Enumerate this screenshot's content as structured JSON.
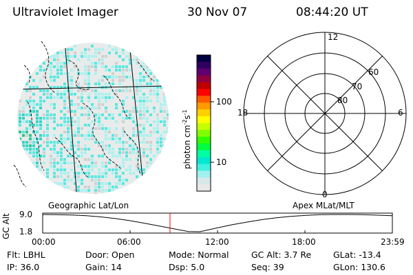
{
  "header": {
    "title": "Ultraviolet Imager",
    "date": "30 Nov 07",
    "time": "08:44:20 UT"
  },
  "colorbar": {
    "label": "photon cm",
    "label_exp1": "-2",
    "label_mid": "s",
    "label_exp2": "-1",
    "ticks": [
      "100",
      "10"
    ],
    "colors": [
      "#000040",
      "#300060",
      "#600070",
      "#900040",
      "#c00000",
      "#ff0000",
      "#ff5a00",
      "#ff9a00",
      "#ffd000",
      "#ffff00",
      "#c8ff00",
      "#80ff00",
      "#30ff00",
      "#00ff40",
      "#00ffa0",
      "#00e8d0",
      "#40f0e0",
      "#a0f0f0",
      "#d8e8e8",
      "#e8e8e8"
    ]
  },
  "earth_map": {
    "base_color": "#e8ebea",
    "speckle_colors": [
      "#58e8e0",
      "#a8f2f0",
      "#d0d0d0",
      "#33d6c8",
      "#28c890"
    ]
  },
  "polar_plot": {
    "lat_labels": [
      "80",
      "70",
      "60"
    ],
    "mlt_labels": {
      "top": "12",
      "bottom": "0",
      "left": "18",
      "right": "6"
    }
  },
  "timeline": {
    "left_label": "Geographic Lat/Lon",
    "right_label": "Apex MLat/MLT",
    "ylabel": "GC Alt",
    "y_ticks": [
      "9.0",
      "1.8"
    ],
    "x_ticks": [
      "00:00",
      "06:00",
      "12:00",
      "18:00",
      "23:59"
    ],
    "marker_color": "#ff0000",
    "marker_time": "08:44:20",
    "series": [
      {
        "t": 0,
        "alt": 9.0
      },
      {
        "t": 1,
        "alt": 8.9
      },
      {
        "t": 2,
        "alt": 8.8
      },
      {
        "t": 3,
        "alt": 8.5
      },
      {
        "t": 4,
        "alt": 8.0
      },
      {
        "t": 5,
        "alt": 7.3
      },
      {
        "t": 6,
        "alt": 6.4
      },
      {
        "t": 7,
        "alt": 5.3
      },
      {
        "t": 8,
        "alt": 4.2
      },
      {
        "t": 9,
        "alt": 3.0
      },
      {
        "t": 10,
        "alt": 1.9
      },
      {
        "t": 10.8,
        "alt": 1.8
      },
      {
        "t": 12,
        "alt": 3.4
      },
      {
        "t": 13,
        "alt": 4.7
      },
      {
        "t": 14,
        "alt": 5.8
      },
      {
        "t": 15,
        "alt": 6.8
      },
      {
        "t": 16,
        "alt": 7.6
      },
      {
        "t": 17,
        "alt": 8.2
      },
      {
        "t": 18,
        "alt": 8.6
      },
      {
        "t": 19,
        "alt": 8.9
      },
      {
        "t": 20,
        "alt": 9.0
      },
      {
        "t": 21,
        "alt": 9.0
      },
      {
        "t": 22,
        "alt": 8.9
      },
      {
        "t": 23,
        "alt": 8.7
      },
      {
        "t": 23.98,
        "alt": 8.5
      }
    ]
  },
  "info": {
    "row1": [
      {
        "key": "Flt:",
        "value": "LBHL"
      },
      {
        "key": "Door:",
        "value": "Open"
      },
      {
        "key": "Mode:",
        "value": "Normal"
      },
      {
        "key": "GC Alt:",
        "value": "3.7 Re"
      },
      {
        "key": "GLat:",
        "value": "-13.4"
      }
    ],
    "row2": [
      {
        "key": "IP:",
        "value": "36.0"
      },
      {
        "key": "Gain:",
        "value": "14"
      },
      {
        "key": "Dsp:",
        "value": "5.0"
      },
      {
        "key": "Seq:",
        "value": "39"
      },
      {
        "key": "GLon:",
        "value": "130.6"
      }
    ]
  }
}
